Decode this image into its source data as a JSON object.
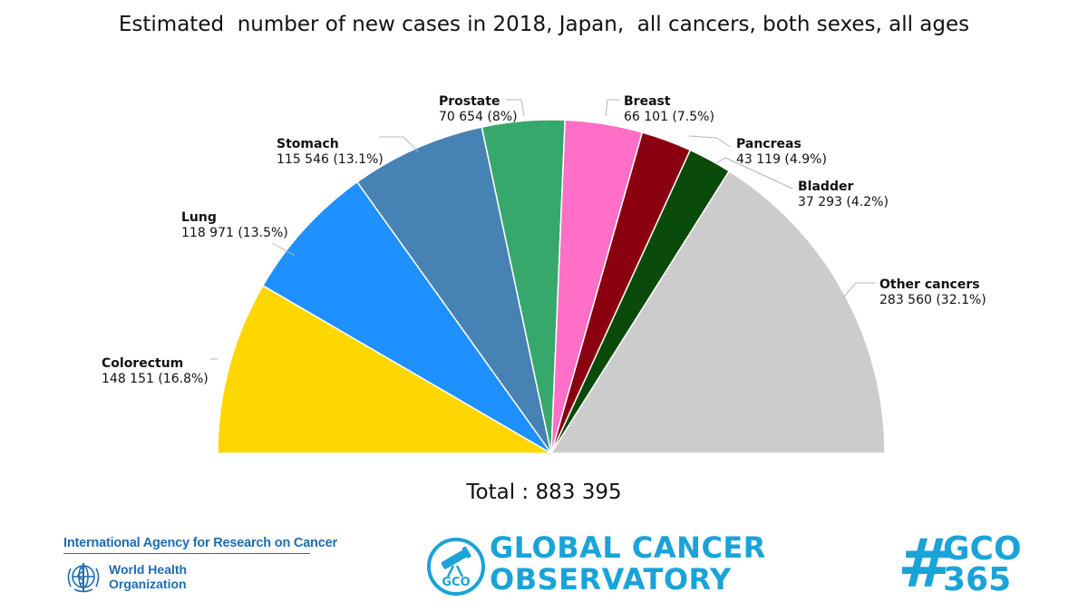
{
  "title": "Estimated  number of new cases in 2018, Japan,  all cancers, both sexes, all ages",
  "total_text": "Total : 883 395",
  "chart_data": {
    "type": "pie",
    "variant": "half-pie",
    "title": "Estimated  number of new cases in 2018, Japan,  all cancers, both sexes, all ages",
    "total": 883395,
    "slices": [
      {
        "name": "Colorectum",
        "value": 148151,
        "value_text": "148 151",
        "percent_text": "16.8%",
        "color": "#ffd700"
      },
      {
        "name": "Lung",
        "value": 118971,
        "value_text": "118 971",
        "percent_text": "13.5%",
        "color": "#1e90ff"
      },
      {
        "name": "Stomach",
        "value": 115546,
        "value_text": "115 546",
        "percent_text": "13.1%",
        "color": "#4682b4"
      },
      {
        "name": "Prostate",
        "value": 70654,
        "value_text": "70 654",
        "percent_text": "8%",
        "color": "#36a86b"
      },
      {
        "name": "Breast",
        "value": 66101,
        "value_text": "66 101",
        "percent_text": "7.5%",
        "color": "#ff6ec7"
      },
      {
        "name": "Pancreas",
        "value": 43119,
        "value_text": "43 119",
        "percent_text": "4.9%",
        "color": "#8b0010"
      },
      {
        "name": "Bladder",
        "value": 37293,
        "value_text": "37 293",
        "percent_text": "4.2%",
        "color": "#0a4a0a"
      },
      {
        "name": "Other cancers",
        "value": 283560,
        "value_text": "283 560",
        "percent_text": "32.1%",
        "color": "#cccccc"
      }
    ]
  },
  "footer": {
    "iarc_name": "International Agency for Research on Cancer",
    "who_line1": "World Health",
    "who_line2": "Organization",
    "gco_emblem_text": "GCO",
    "gco_line1": "GLOBAL CANCER",
    "gco_line2": "OBSERVATORY",
    "hashtag_symbol": "#",
    "hashtag_line1": "GCO",
    "hashtag_line2": "365",
    "brand_color": "#1aa3d8",
    "iarc_color": "#1f6cb0"
  }
}
